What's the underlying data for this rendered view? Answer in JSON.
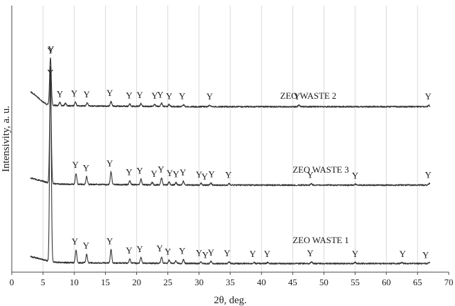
{
  "chart_data": {
    "type": "line",
    "title": "",
    "xlabel": "2θ, deg.",
    "ylabel": "Intensivity, a. u.",
    "xlim": [
      0,
      70
    ],
    "x_ticks": [
      0,
      5,
      10,
      15,
      20,
      25,
      30,
      35,
      40,
      45,
      50,
      55,
      60,
      65,
      70
    ],
    "y_ticks_shown": false,
    "grid": "vertical",
    "legend": "inline labels on traces",
    "x_range_measured": [
      3,
      67
    ],
    "peak_marker": "Y",
    "series": [
      {
        "name": "ZEO WASTE 2",
        "offset": 2.0,
        "background": [
          [
            3,
            0.2
          ],
          [
            3.6,
            0.17
          ],
          [
            4.3,
            0.12
          ],
          [
            5,
            0.07
          ],
          [
            5.6,
            0.04
          ],
          [
            7,
            0.025
          ],
          [
            10,
            0.02
          ],
          [
            20,
            0.015
          ],
          [
            30,
            0.01
          ],
          [
            40,
            0.01
          ],
          [
            50,
            0.01
          ],
          [
            67,
            0.01
          ]
        ],
        "peaks": [
          [
            6.2,
            0.6
          ],
          [
            7.7,
            0.04
          ],
          [
            8.6,
            0.03
          ],
          [
            10.2,
            0.05
          ],
          [
            12.1,
            0.04
          ],
          [
            15.9,
            0.06
          ],
          [
            18.9,
            0.03
          ],
          [
            20.7,
            0.035
          ],
          [
            22.9,
            0.025
          ],
          [
            24.0,
            0.04
          ],
          [
            25.2,
            0.025
          ],
          [
            27.5,
            0.025
          ],
          [
            31.7,
            0.02
          ],
          [
            46.0,
            0.02
          ],
          [
            66.8,
            0.02
          ]
        ],
        "y_labels": [
          6.2,
          6.3,
          7.7,
          10.0,
          12.0,
          15.7,
          18.8,
          20.5,
          22.9,
          23.8,
          25.2,
          27.3,
          31.7,
          45.7,
          66.7
        ],
        "label_position": [
          47.5,
          2.11
        ]
      },
      {
        "name": "ZEO WASTE 3",
        "offset": 1.0,
        "background": [
          [
            3,
            0.1
          ],
          [
            4,
            0.08
          ],
          [
            5,
            0.06
          ],
          [
            5.8,
            0.04
          ],
          [
            7,
            0.025
          ],
          [
            10,
            0.02
          ],
          [
            20,
            0.015
          ],
          [
            30,
            0.01
          ],
          [
            50,
            0.01
          ],
          [
            67,
            0.01
          ]
        ],
        "peaks": [
          [
            6.2,
            1.3
          ],
          [
            10.3,
            0.14
          ],
          [
            12.0,
            0.1
          ],
          [
            15.9,
            0.16
          ],
          [
            18.9,
            0.05
          ],
          [
            20.7,
            0.07
          ],
          [
            22.5,
            0.03
          ],
          [
            24.0,
            0.09
          ],
          [
            25.2,
            0.04
          ],
          [
            26.3,
            0.03
          ],
          [
            27.5,
            0.05
          ],
          [
            30.3,
            0.025
          ],
          [
            31.9,
            0.03
          ],
          [
            34.8,
            0.02
          ],
          [
            48.0,
            0.02
          ],
          [
            55.0,
            0.015
          ],
          [
            66.9,
            0.02
          ]
        ],
        "y_labels": [
          6.2,
          10.2,
          11.9,
          15.7,
          18.8,
          20.5,
          22.8,
          23.9,
          25.3,
          26.3,
          27.4,
          30.0,
          30.9,
          32.0,
          34.7,
          47.8,
          55.0,
          66.7
        ],
        "label_position": [
          49.5,
          1.17
        ]
      },
      {
        "name": "ZEO WASTE 1",
        "offset": 0.0,
        "background": [
          [
            3,
            0.1
          ],
          [
            4,
            0.08
          ],
          [
            5,
            0.06
          ],
          [
            5.8,
            0.04
          ],
          [
            7,
            0.025
          ],
          [
            10,
            0.02
          ],
          [
            20,
            0.015
          ],
          [
            30,
            0.01
          ],
          [
            50,
            0.01
          ],
          [
            67,
            0.01
          ]
        ],
        "peaks": [
          [
            6.2,
            2.5
          ],
          [
            10.3,
            0.16
          ],
          [
            12.0,
            0.11
          ],
          [
            15.9,
            0.17
          ],
          [
            18.9,
            0.05
          ],
          [
            20.7,
            0.07
          ],
          [
            24.0,
            0.08
          ],
          [
            25.2,
            0.04
          ],
          [
            26.3,
            0.03
          ],
          [
            27.5,
            0.05
          ],
          [
            30.3,
            0.025
          ],
          [
            31.9,
            0.03
          ],
          [
            34.8,
            0.02
          ],
          [
            38.8,
            0.015
          ],
          [
            41.0,
            0.015
          ],
          [
            48.0,
            0.02
          ],
          [
            55.0,
            0.015
          ],
          [
            62.5,
            0.015
          ],
          [
            66.9,
            0.02
          ]
        ],
        "y_labels": [
          10.1,
          11.9,
          15.7,
          18.8,
          20.5,
          23.7,
          25.0,
          27.3,
          30.0,
          31.0,
          31.9,
          34.5,
          38.6,
          40.9,
          47.8,
          55.0,
          62.6,
          66.3
        ],
        "label_position": [
          49.5,
          0.27
        ]
      }
    ]
  }
}
